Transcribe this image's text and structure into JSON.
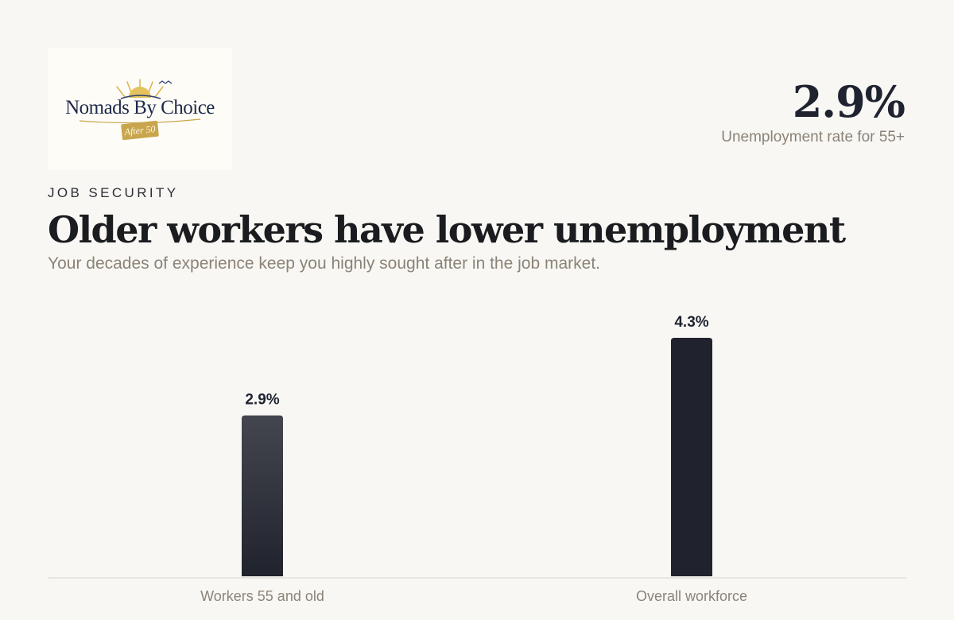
{
  "logo": {
    "wordmark": "Nomads By Choice",
    "tag": "After 50"
  },
  "stat": {
    "value": "2.9%",
    "label": "Unemployment rate for 55+"
  },
  "header": {
    "eyebrow": "JOB SECURITY",
    "title": "Older workers have lower unemployment",
    "subtitle": "Your decades of experience keep you highly sought after in the job market."
  },
  "colors": {
    "bar_primary": "#20232d",
    "bar_gradient_top": "#44464f",
    "axis": "#d9d6cf",
    "label": "#8b8378",
    "value_label": "#1f2330"
  },
  "chart_data": {
    "type": "bar",
    "categories": [
      "Workers 55 and old",
      "Overall workforce"
    ],
    "values": [
      2.9,
      4.3
    ],
    "value_labels": [
      "2.9%",
      "4.3%"
    ],
    "ylim": [
      0,
      4.3
    ],
    "grid": false
  }
}
